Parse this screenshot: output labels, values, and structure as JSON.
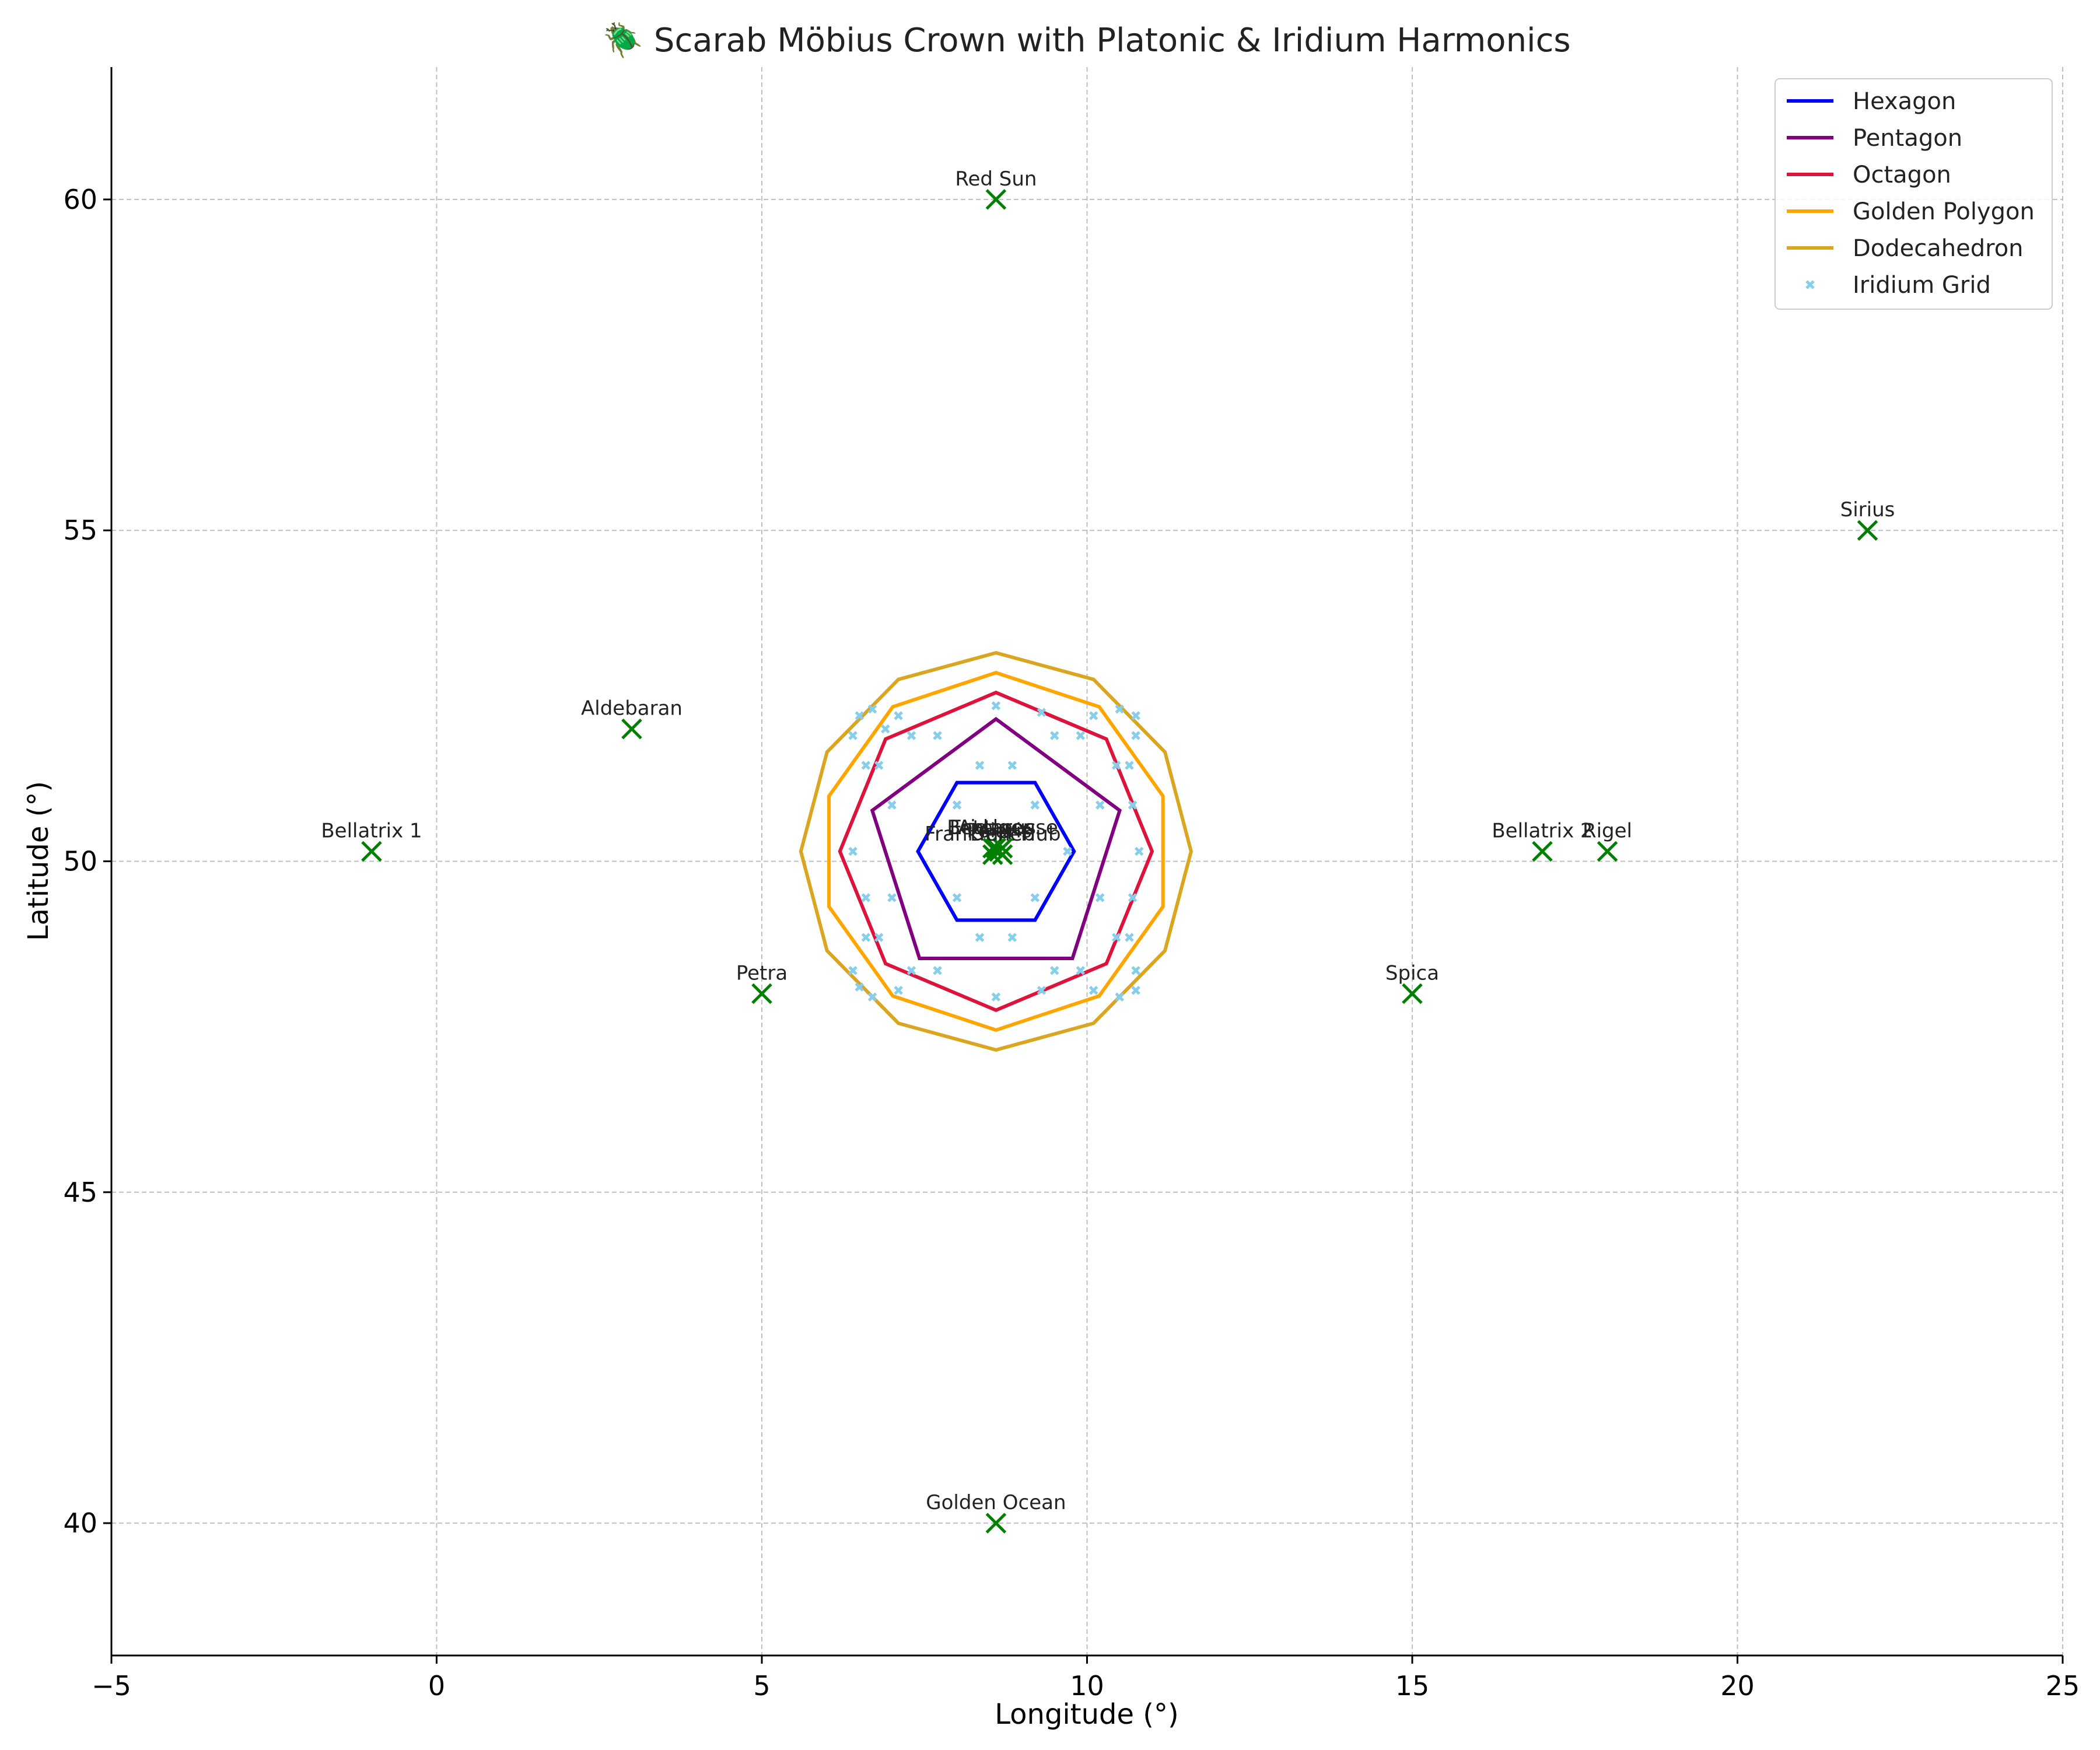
{
  "chart_data": {
    "type": "line",
    "title": "🪲 Scarab Möbius Crown with Platonic & Iridium Harmonics",
    "xlabel": "Longitude (°)",
    "ylabel": "Latitude (°)",
    "xlim": [
      -5,
      25
    ],
    "ylim": [
      38,
      62
    ],
    "xticks": [
      -5,
      0,
      5,
      10,
      15,
      20,
      25
    ],
    "xtick_labels": [
      "−5",
      "0",
      "5",
      "10",
      "15",
      "20",
      "25"
    ],
    "yticks": [
      40,
      45,
      50,
      55,
      60
    ],
    "ytick_labels": [
      "40",
      "45",
      "50",
      "55",
      "60"
    ],
    "grid": true,
    "legend_position": "top-right",
    "center": [
      8.6,
      50.15
    ],
    "series": [
      {
        "name": "Hexagon",
        "type": "polygon",
        "sides": 6,
        "radius": 1.2,
        "rotation_deg": 0,
        "color": "#0000ff"
      },
      {
        "name": "Pentagon",
        "type": "polygon",
        "sides": 5,
        "radius": 2.0,
        "rotation_deg": 90,
        "color": "#800080"
      },
      {
        "name": "Octagon",
        "type": "polygon",
        "sides": 8,
        "radius": 2.4,
        "rotation_deg": 90,
        "color": "#dc143c"
      },
      {
        "name": "Golden Polygon",
        "type": "polygon",
        "sides": 10,
        "radius": 2.7,
        "rotation_deg": 90,
        "color": "#ffa500"
      },
      {
        "name": "Dodecahedron",
        "type": "polygon",
        "sides": 12,
        "radius": 3.0,
        "rotation_deg": 90,
        "color": "#daa520"
      },
      {
        "name": "Iridium Grid",
        "type": "scatter",
        "color": "#87ceeb",
        "points": [
          [
            8.6,
            52.35
          ],
          [
            9.3,
            52.25
          ],
          [
            10.1,
            52.2
          ],
          [
            10.5,
            52.3
          ],
          [
            10.75,
            52.2
          ],
          [
            10.75,
            51.9
          ],
          [
            6.5,
            52.2
          ],
          [
            6.7,
            52.3
          ],
          [
            7.1,
            52.2
          ],
          [
            6.4,
            51.9
          ],
          [
            7.3,
            51.9
          ],
          [
            7.7,
            51.9
          ],
          [
            9.5,
            51.9
          ],
          [
            9.9,
            51.9
          ],
          [
            6.6,
            51.45
          ],
          [
            6.8,
            51.45
          ],
          [
            10.45,
            51.45
          ],
          [
            10.65,
            51.45
          ],
          [
            8.35,
            51.45
          ],
          [
            8.85,
            51.45
          ],
          [
            7.0,
            50.85
          ],
          [
            10.2,
            50.85
          ],
          [
            10.7,
            50.85
          ],
          [
            8.0,
            50.85
          ],
          [
            9.2,
            50.85
          ],
          [
            6.4,
            50.15
          ],
          [
            10.8,
            50.15
          ],
          [
            9.7,
            50.15
          ],
          [
            7.0,
            49.45
          ],
          [
            10.2,
            49.45
          ],
          [
            10.7,
            49.45
          ],
          [
            6.6,
            48.85
          ],
          [
            6.8,
            48.85
          ],
          [
            10.45,
            48.85
          ],
          [
            10.65,
            48.85
          ],
          [
            8.35,
            48.85
          ],
          [
            8.85,
            48.85
          ],
          [
            6.5,
            48.1
          ],
          [
            6.7,
            47.95
          ],
          [
            7.1,
            48.05
          ],
          [
            6.4,
            48.35
          ],
          [
            7.3,
            48.35
          ],
          [
            7.7,
            48.35
          ],
          [
            9.5,
            48.35
          ],
          [
            9.9,
            48.35
          ],
          [
            8.6,
            47.95
          ],
          [
            9.3,
            48.05
          ],
          [
            10.1,
            48.05
          ],
          [
            10.5,
            47.95
          ],
          [
            10.75,
            48.05
          ],
          [
            10.75,
            48.35
          ],
          [
            6.6,
            49.45
          ],
          [
            8.0,
            49.45
          ],
          [
            9.2,
            49.45
          ],
          [
            6.9,
            52.0
          ]
        ]
      }
    ],
    "landmarks": [
      {
        "name": "Red Sun",
        "x": 8.6,
        "y": 60.0
      },
      {
        "name": "Sirius",
        "x": 22.0,
        "y": 55.0
      },
      {
        "name": "Aldebaran",
        "x": 3.0,
        "y": 52.0
      },
      {
        "name": "Bellatrix 1",
        "x": -1.0,
        "y": 50.15
      },
      {
        "name": "Bellatrix 2",
        "x": 17.0,
        "y": 50.15
      },
      {
        "name": "Rigel",
        "x": 18.0,
        "y": 50.15
      },
      {
        "name": "Petra",
        "x": 5.0,
        "y": 48.0
      },
      {
        "name": "Spica",
        "x": 15.0,
        "y": 48.0
      },
      {
        "name": "Golden Ocean",
        "x": 8.6,
        "y": 40.0
      },
      {
        "name": "Frankfurt Hub",
        "x": 8.55,
        "y": 50.1
      },
      {
        "name": "Betelgeuse",
        "x": 8.7,
        "y": 50.2
      },
      {
        "name": "Antares",
        "x": 8.6,
        "y": 50.2
      },
      {
        "name": "Polaris",
        "x": 8.65,
        "y": 50.15
      },
      {
        "name": "Eridanus",
        "x": 8.55,
        "y": 50.2
      },
      {
        "name": "Deneb",
        "x": 8.7,
        "y": 50.1
      }
    ],
    "landmark_color": "#008000"
  }
}
